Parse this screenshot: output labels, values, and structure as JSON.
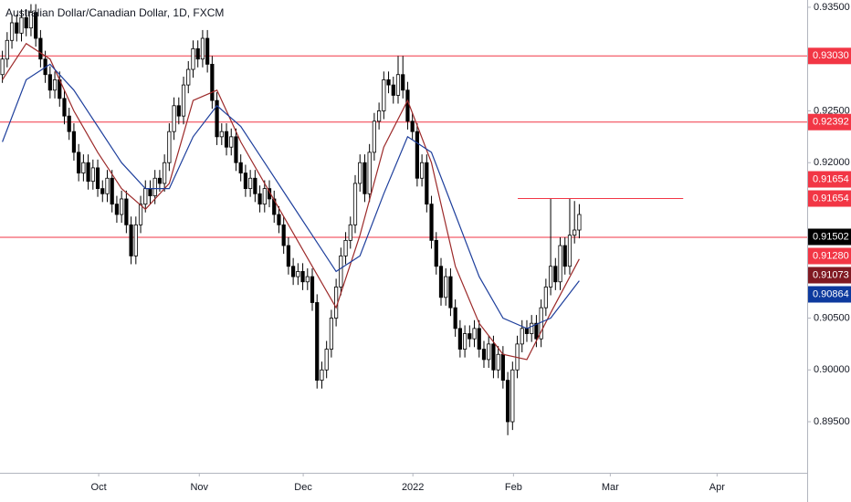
{
  "chart_data": {
    "type": "candlestick",
    "title": "Australian Dollar/Canadian Dollar, 1D, FXCM",
    "xlim": [
      0,
      169.3
    ],
    "xticks": [
      {
        "value": 20.7,
        "label": "Oct"
      },
      {
        "value": 41.8,
        "label": "Nov"
      },
      {
        "value": 63.6,
        "label": "Dec"
      },
      {
        "value": 86.6,
        "label": "2022"
      },
      {
        "value": 107.7,
        "label": "Feb"
      },
      {
        "value": 128,
        "label": "Mar"
      },
      {
        "value": 150.4,
        "label": "Apr"
      }
    ],
    "ylim": [
      0.89007,
      0.9357
    ],
    "yticks": [
      {
        "value": 0.935,
        "label": "0.93500"
      },
      {
        "value": 0.925,
        "label": "0.92500"
      },
      {
        "value": 0.92,
        "label": "0.92000"
      },
      {
        "value": 0.905,
        "label": "0.90500"
      },
      {
        "value": 0.9,
        "label": "0.90000"
      },
      {
        "value": 0.895,
        "label": "0.89500"
      }
    ],
    "up_color": "#ffffff",
    "down_color": "#000000",
    "candles": {
      "open": [
        0.9285,
        0.93,
        0.9318,
        0.9335,
        0.9325,
        0.934,
        0.933,
        0.9345,
        0.932,
        0.93,
        0.9285,
        0.927,
        0.928,
        0.9262,
        0.9245,
        0.923,
        0.921,
        0.919,
        0.92,
        0.9182,
        0.9195,
        0.9175,
        0.917,
        0.9185,
        0.916,
        0.915,
        0.9165,
        0.914,
        0.911,
        0.914,
        0.916,
        0.9175,
        0.9168,
        0.9185,
        0.918,
        0.92,
        0.923,
        0.9255,
        0.9245,
        0.9275,
        0.929,
        0.931,
        0.93,
        0.932,
        0.9295,
        0.926,
        0.9225,
        0.923,
        0.9215,
        0.9225,
        0.92,
        0.919,
        0.9175,
        0.9185,
        0.917,
        0.916,
        0.9175,
        0.9165,
        0.915,
        0.914,
        0.912,
        0.91,
        0.909,
        0.9095,
        0.9085,
        0.909,
        0.9065,
        0.899,
        0.9,
        0.902,
        0.905,
        0.908,
        0.911,
        0.9125,
        0.914,
        0.918,
        0.92,
        0.917,
        0.921,
        0.924,
        0.925,
        0.928,
        0.9275,
        0.9265,
        0.9285,
        0.927,
        0.924,
        0.923,
        0.9185,
        0.92,
        0.916,
        0.9125,
        0.91,
        0.907,
        0.909,
        0.906,
        0.904,
        0.902,
        0.9035,
        0.903,
        0.904,
        0.902,
        0.901,
        0.9025,
        0.9,
        0.9015,
        0.899,
        0.895,
        0.9,
        0.9025,
        0.904,
        0.9035,
        0.9045,
        0.903,
        0.906,
        0.908,
        0.91,
        0.9085,
        0.912,
        0.91,
        0.913,
        0.9135
      ],
      "high": [
        0.9308,
        0.9326,
        0.9343,
        0.9343,
        0.9348,
        0.9348,
        0.9353,
        0.9353,
        0.9328,
        0.9308,
        0.9293,
        0.9288,
        0.9288,
        0.927,
        0.9253,
        0.9238,
        0.9218,
        0.9208,
        0.9208,
        0.9203,
        0.9203,
        0.9183,
        0.9193,
        0.9193,
        0.9168,
        0.9173,
        0.9173,
        0.9148,
        0.9148,
        0.9168,
        0.9183,
        0.9183,
        0.9193,
        0.9193,
        0.9208,
        0.9238,
        0.9263,
        0.9263,
        0.9283,
        0.9298,
        0.9318,
        0.9318,
        0.9328,
        0.9328,
        0.9303,
        0.9268,
        0.9238,
        0.9238,
        0.9233,
        0.9233,
        0.9208,
        0.9198,
        0.9193,
        0.9193,
        0.9178,
        0.9183,
        0.9183,
        0.9173,
        0.9158,
        0.9148,
        0.9128,
        0.9108,
        0.9103,
        0.9103,
        0.9098,
        0.9098,
        0.9073,
        0.9008,
        0.9028,
        0.9058,
        0.9088,
        0.9118,
        0.9133,
        0.9148,
        0.9188,
        0.9208,
        0.9208,
        0.9218,
        0.9248,
        0.9258,
        0.9288,
        0.9288,
        0.9283,
        0.9303,
        0.9303,
        0.9278,
        0.9248,
        0.9238,
        0.9208,
        0.9208,
        0.9168,
        0.9133,
        0.9108,
        0.9098,
        0.9098,
        0.9068,
        0.9048,
        0.9043,
        0.9043,
        0.9048,
        0.9048,
        0.9028,
        0.9033,
        0.9033,
        0.9023,
        0.9023,
        0.8998,
        0.9008,
        0.9033,
        0.9048,
        0.9048,
        0.9053,
        0.9053,
        0.9068,
        0.9088,
        0.9165,
        0.9108,
        0.9128,
        0.9128,
        0.9165,
        0.9163,
        0.916
      ],
      "low": [
        0.9277,
        0.9292,
        0.931,
        0.9317,
        0.9317,
        0.9322,
        0.9322,
        0.9312,
        0.9292,
        0.9277,
        0.9262,
        0.9262,
        0.9254,
        0.9237,
        0.9222,
        0.9202,
        0.9182,
        0.9182,
        0.9174,
        0.9174,
        0.9167,
        0.9162,
        0.9162,
        0.9152,
        0.9142,
        0.9142,
        0.9132,
        0.9102,
        0.9102,
        0.9132,
        0.9152,
        0.916,
        0.916,
        0.9172,
        0.9172,
        0.9192,
        0.9222,
        0.9237,
        0.9237,
        0.9267,
        0.9282,
        0.9292,
        0.9292,
        0.9287,
        0.9252,
        0.9217,
        0.9217,
        0.9207,
        0.9207,
        0.9192,
        0.9182,
        0.9167,
        0.9167,
        0.9162,
        0.9152,
        0.9152,
        0.9157,
        0.9142,
        0.9132,
        0.9112,
        0.9092,
        0.9082,
        0.9082,
        0.9077,
        0.9077,
        0.9057,
        0.8982,
        0.8982,
        0.8992,
        0.9012,
        0.9042,
        0.9072,
        0.9102,
        0.9117,
        0.9132,
        0.9172,
        0.9162,
        0.9162,
        0.9202,
        0.9232,
        0.9242,
        0.9267,
        0.9257,
        0.9257,
        0.9262,
        0.9232,
        0.9222,
        0.9177,
        0.9177,
        0.9152,
        0.9117,
        0.9092,
        0.9062,
        0.9062,
        0.9052,
        0.9032,
        0.9012,
        0.9012,
        0.9022,
        0.9022,
        0.9012,
        0.9002,
        0.9002,
        0.8992,
        0.8992,
        0.8982,
        0.8937,
        0.8942,
        0.8992,
        0.9017,
        0.9027,
        0.9027,
        0.9022,
        0.9022,
        0.9052,
        0.9072,
        0.9077,
        0.9077,
        0.9092,
        0.9092,
        0.9122,
        0.9127
      ],
      "close": [
        0.93,
        0.9318,
        0.9335,
        0.9325,
        0.934,
        0.933,
        0.9345,
        0.932,
        0.93,
        0.9285,
        0.927,
        0.928,
        0.9262,
        0.9245,
        0.923,
        0.921,
        0.919,
        0.92,
        0.9182,
        0.9195,
        0.9175,
        0.917,
        0.9185,
        0.916,
        0.915,
        0.9165,
        0.914,
        0.911,
        0.914,
        0.916,
        0.9175,
        0.9168,
        0.9185,
        0.918,
        0.92,
        0.923,
        0.9255,
        0.9245,
        0.9275,
        0.929,
        0.931,
        0.93,
        0.932,
        0.9295,
        0.926,
        0.9225,
        0.923,
        0.9215,
        0.9225,
        0.92,
        0.919,
        0.9175,
        0.9185,
        0.917,
        0.916,
        0.9175,
        0.9165,
        0.915,
        0.914,
        0.912,
        0.91,
        0.909,
        0.9095,
        0.9085,
        0.909,
        0.9065,
        0.899,
        0.9,
        0.902,
        0.905,
        0.908,
        0.911,
        0.9125,
        0.914,
        0.918,
        0.92,
        0.917,
        0.921,
        0.924,
        0.925,
        0.928,
        0.9275,
        0.9265,
        0.9285,
        0.927,
        0.924,
        0.923,
        0.9185,
        0.92,
        0.916,
        0.9125,
        0.91,
        0.907,
        0.909,
        0.906,
        0.904,
        0.902,
        0.9035,
        0.903,
        0.904,
        0.902,
        0.901,
        0.9025,
        0.9,
        0.9015,
        0.899,
        0.895,
        0.9,
        0.9025,
        0.904,
        0.9035,
        0.9045,
        0.903,
        0.906,
        0.908,
        0.91,
        0.9085,
        0.912,
        0.91,
        0.913,
        0.9135,
        0.915
      ]
    },
    "lines": [
      {
        "color": "#9c2a2a",
        "x": [
          0.5,
          5.5,
          10.5,
          15.5,
          20.5,
          25.5,
          30.5,
          35.5,
          40.5,
          45.5,
          50.5,
          55.5,
          60.5,
          65.5,
          70.5,
          75.5,
          80.5,
          85.5,
          90.5,
          95.5,
          100.5,
          105.5,
          110.5,
          115.5,
          121.5
        ],
        "values": [
          0.928,
          0.9315,
          0.93,
          0.925,
          0.921,
          0.9175,
          0.9155,
          0.918,
          0.926,
          0.927,
          0.922,
          0.918,
          0.914,
          0.91,
          0.906,
          0.913,
          0.9215,
          0.926,
          0.92,
          0.91,
          0.9045,
          0.9015,
          0.901,
          0.9055,
          0.9107
        ]
      },
      {
        "color": "#1e3f9c",
        "x": [
          0.5,
          5.5,
          10.5,
          15.5,
          20.5,
          25.5,
          30.5,
          35.5,
          40.5,
          45.5,
          50.5,
          55.5,
          60.5,
          65.5,
          70.5,
          75.5,
          80.5,
          85.5,
          90.5,
          95.5,
          100.5,
          105.5,
          110.5,
          115.5,
          121.5
        ],
        "values": [
          0.922,
          0.928,
          0.9295,
          0.927,
          0.9235,
          0.92,
          0.9175,
          0.9175,
          0.9225,
          0.9255,
          0.9235,
          0.92,
          0.9165,
          0.913,
          0.9095,
          0.911,
          0.917,
          0.9225,
          0.921,
          0.915,
          0.909,
          0.905,
          0.904,
          0.905,
          0.9086
        ]
      }
    ],
    "levels": [
      {
        "value": 0.9303,
        "color": "#f23645"
      },
      {
        "value": 0.92392,
        "color": "#f23645"
      },
      {
        "value": 0.9128,
        "color": "#f23645"
      }
    ],
    "short_level": {
      "value": 0.91654,
      "x": [
        108.6,
        143.3
      ],
      "color": "#f23645"
    },
    "price_tags": [
      {
        "value": 0.9303,
        "label": "0.93030",
        "color": "#f23645"
      },
      {
        "value": 0.92392,
        "label": "0.92392",
        "color": "#f23645"
      },
      {
        "value": 0.91654,
        "label": "0.91654",
        "color": "#f23645"
      },
      {
        "value": 0.91654,
        "label": "0.91654",
        "color": "#f23645"
      },
      {
        "value": 0.91502,
        "label": "0.91502",
        "color": "#000000"
      },
      {
        "value": 0.9128,
        "label": "0.91280",
        "color": "#f23645"
      },
      {
        "value": 0.91073,
        "label": "0.91073",
        "color": "#801922"
      },
      {
        "value": 0.90864,
        "label": "0.90864",
        "color": "#0d3a9e"
      }
    ]
  }
}
